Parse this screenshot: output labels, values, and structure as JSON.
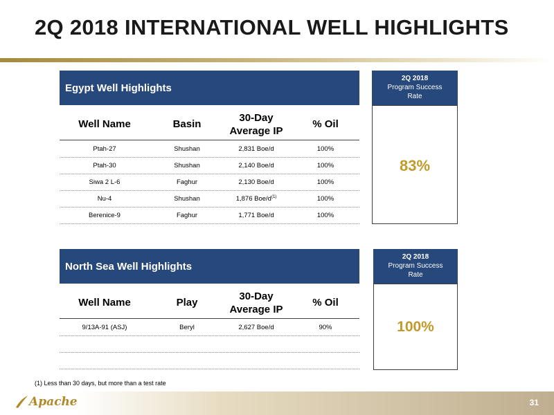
{
  "page_title": "2Q 2018 INTERNATIONAL WELL HIGHLIGHTS",
  "egypt": {
    "header": "Egypt Well Highlights",
    "columns": [
      "Well Name",
      "Basin",
      "30-Day\nAverage IP",
      "% Oil"
    ],
    "rows": [
      {
        "well": "Ptah-27",
        "basin": "Shushan",
        "ip": "2,831 Boe/d",
        "oil": "100%"
      },
      {
        "well": "Ptah-30",
        "basin": "Shushan",
        "ip": "2,140 Boe/d",
        "oil": "100%"
      },
      {
        "well": "Siwa 2 L-6",
        "basin": "Faghur",
        "ip": "2,130 Boe/d",
        "oil": "100%"
      },
      {
        "well": "Nu-4",
        "basin": "Shushan",
        "ip": "1,876 Boe/d",
        "ip_note": "(1)",
        "oil": "100%"
      },
      {
        "well": "Berenice-9",
        "basin": "Faghur",
        "ip": "1,771 Boe/d",
        "oil": "100%"
      }
    ],
    "rate_label": {
      "line1": "2Q 2018",
      "line2": "Program Success",
      "line3": "Rate"
    },
    "rate_value": "83%"
  },
  "north_sea": {
    "header": "North Sea Well Highlights",
    "columns": [
      "Well Name",
      "Play",
      "30-Day\nAverage IP",
      "% Oil"
    ],
    "rows": [
      {
        "well": "9/13A-91 (ASJ)",
        "basin": "Beryl",
        "ip": "2,627 Boe/d",
        "oil": "90%"
      },
      {
        "well": "",
        "basin": "",
        "ip": "",
        "oil": ""
      },
      {
        "well": "",
        "basin": "",
        "ip": "",
        "oil": ""
      }
    ],
    "rate_label": {
      "line1": "2Q 2018",
      "line2": "Program Success",
      "line3": "Rate"
    },
    "rate_value": "100%"
  },
  "footnote": "(1)  Less than 30 days, but more than a test rate",
  "logo_text": "Apache",
  "page_number": "31",
  "colors": {
    "header_blue": "#27487a",
    "gold": "#c19a2a"
  }
}
